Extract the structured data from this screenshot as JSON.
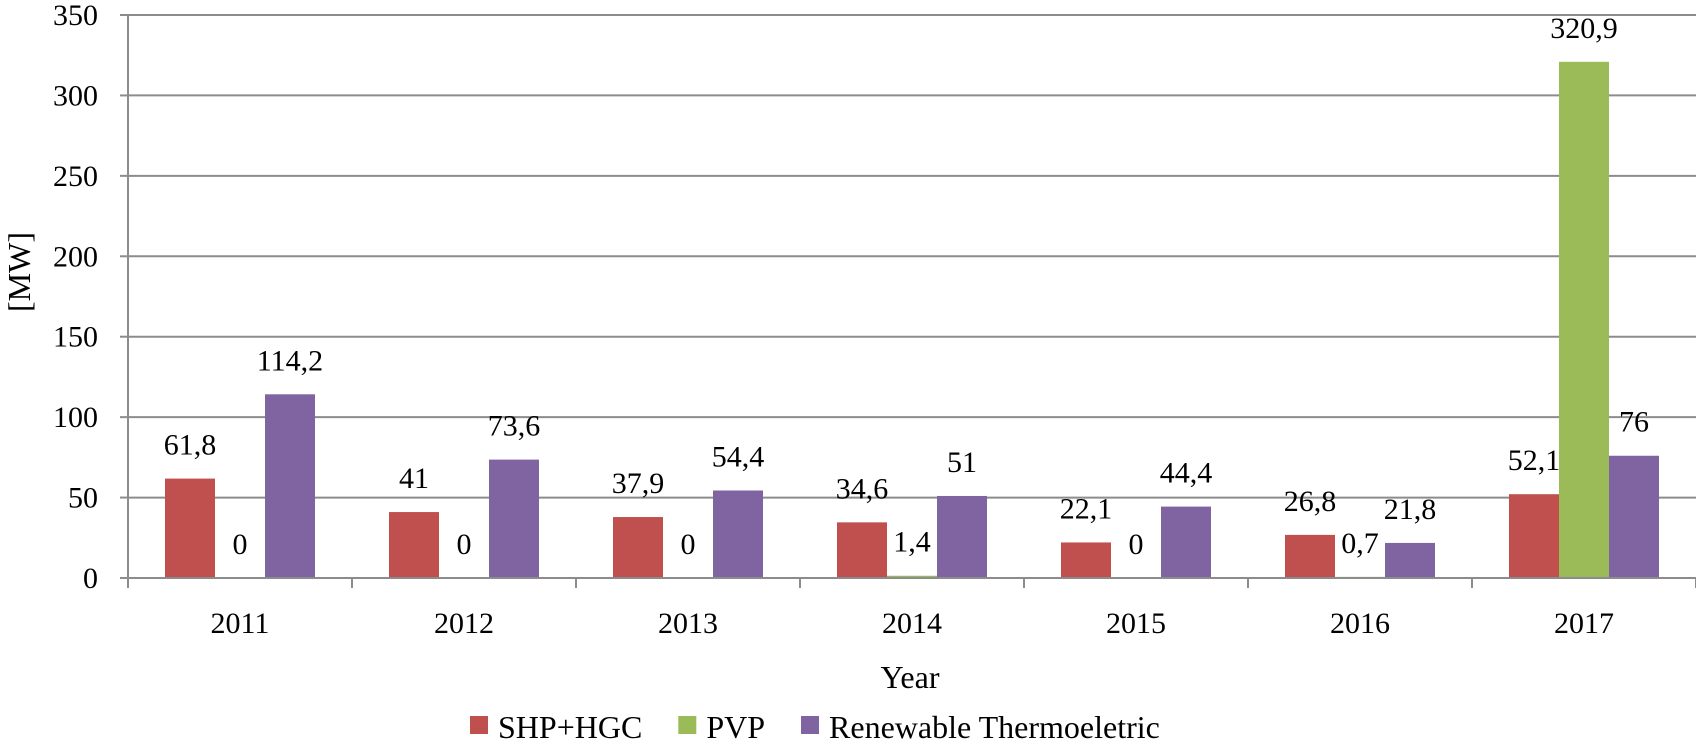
{
  "chart_data": {
    "type": "bar",
    "categories": [
      "2011",
      "2012",
      "2013",
      "2014",
      "2015",
      "2016",
      "2017"
    ],
    "series": [
      {
        "name": "SHP+HGC",
        "color": "#c0504d",
        "values": [
          61.8,
          41,
          37.9,
          34.6,
          22.1,
          26.8,
          52.1
        ],
        "labels": [
          "61,8",
          "41",
          "37,9",
          "34,6",
          "22,1",
          "26,8",
          "52,1"
        ]
      },
      {
        "name": "PVP",
        "color": "#9bbb59",
        "values": [
          0,
          0,
          0,
          1.4,
          0,
          0.7,
          320.9
        ],
        "labels": [
          "0",
          "0",
          "0",
          "1,4",
          "0",
          "0,7",
          "320,9"
        ]
      },
      {
        "name": "Renewable Thermoeletric",
        "color": "#8064a2",
        "values": [
          114.2,
          73.6,
          54.4,
          51,
          44.4,
          21.8,
          76
        ],
        "labels": [
          "114,2",
          "73,6",
          "54,4",
          "51",
          "44,4",
          "21,8",
          "76"
        ]
      }
    ],
    "xlabel": "Year",
    "ylabel": "[MW]",
    "ylim": [
      0,
      350
    ],
    "yticks": [
      0,
      50,
      100,
      150,
      200,
      250,
      300,
      350
    ],
    "grid": true,
    "legend_position": "bottom"
  }
}
